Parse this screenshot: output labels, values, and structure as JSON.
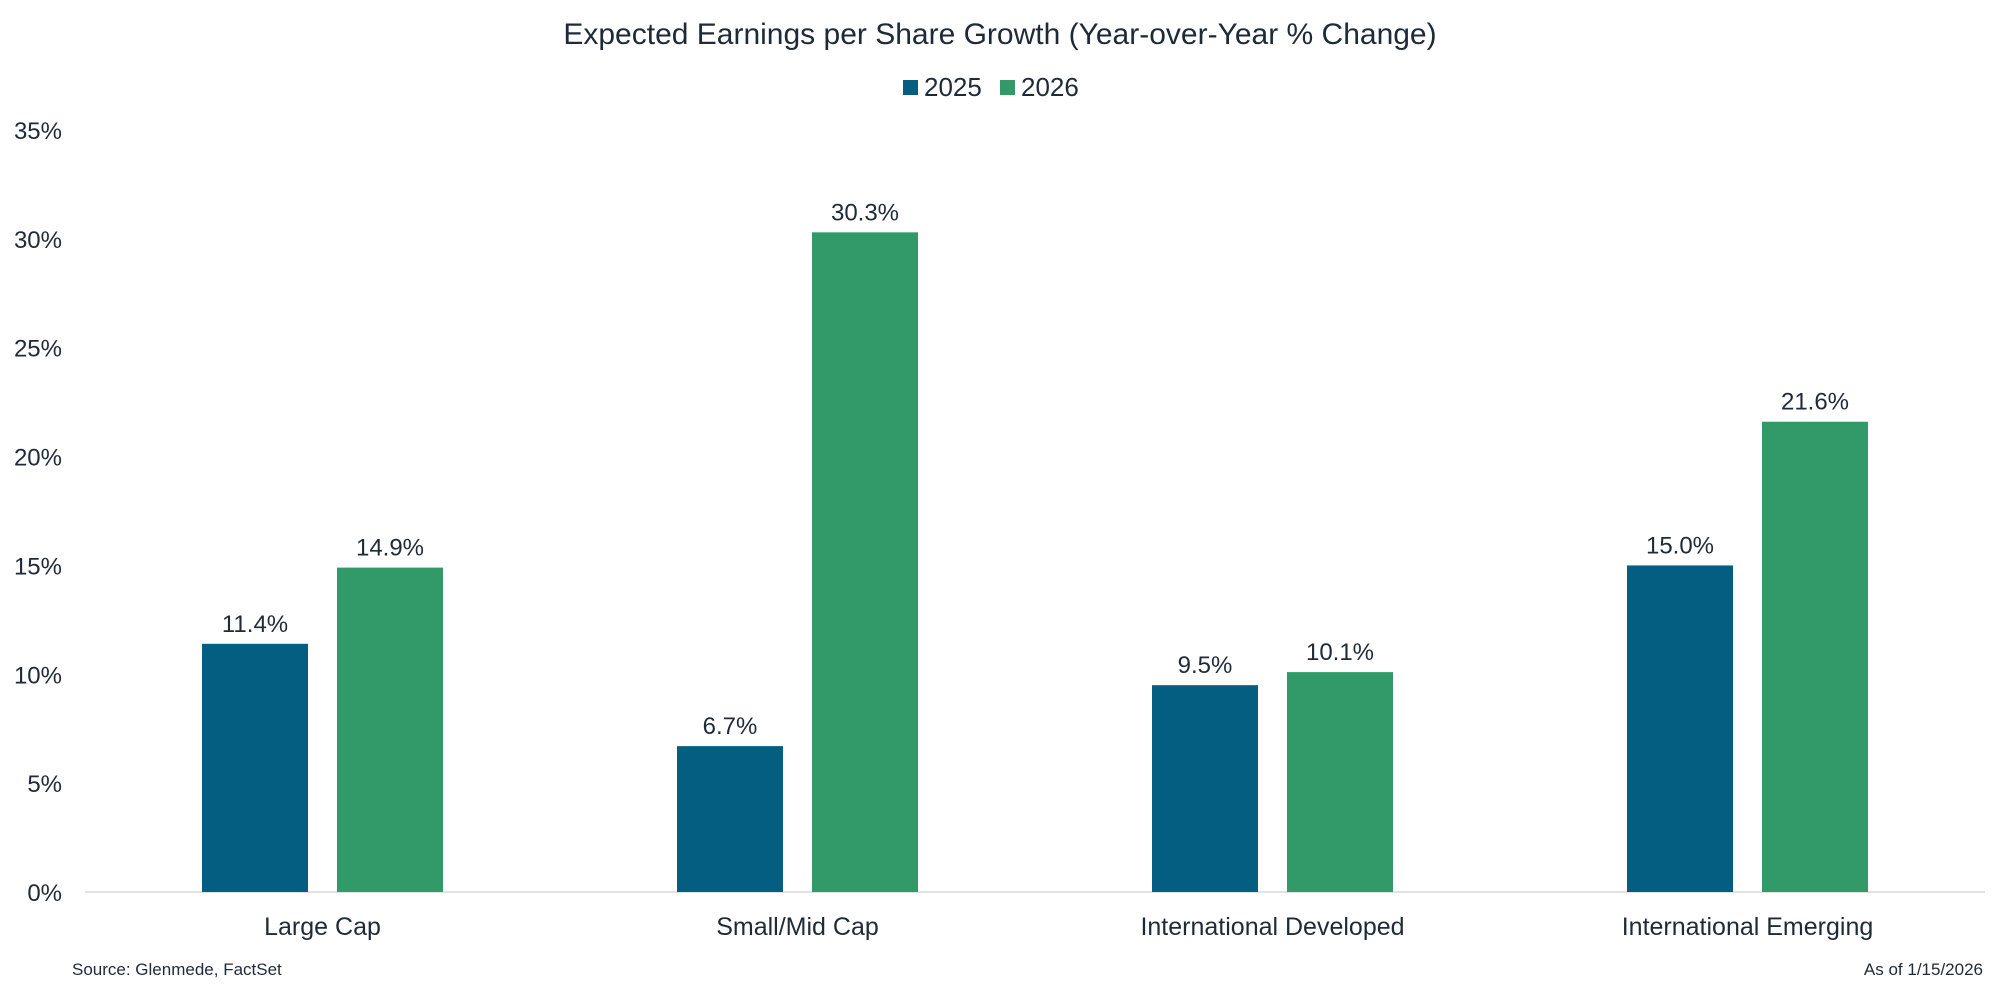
{
  "chart_data": {
    "type": "bar",
    "title": "Expected Earnings per Share Growth (Year-over-Year % Change)",
    "categories": [
      "Large Cap",
      "Small/Mid Cap",
      "International Developed",
      "International Emerging"
    ],
    "series": [
      {
        "name": "2025",
        "color": "#035E82",
        "values": [
          11.4,
          6.7,
          9.5,
          15.0
        ],
        "labels": [
          "11.4%",
          "6.7%",
          "9.5%",
          "15.0%"
        ]
      },
      {
        "name": "2026",
        "color": "#329A69",
        "values": [
          14.9,
          30.3,
          10.1,
          21.6
        ],
        "labels": [
          "14.9%",
          "30.3%",
          "10.1%",
          "21.6%"
        ]
      }
    ],
    "ylim": [
      0,
      35
    ],
    "yticks": [
      0,
      5,
      10,
      15,
      20,
      25,
      30,
      35
    ],
    "ytick_labels": [
      "0%",
      "5%",
      "10%",
      "15%",
      "20%",
      "25%",
      "30%",
      "35%"
    ],
    "xlabel": "",
    "ylabel": "",
    "grid": false,
    "legend_position": "top-center"
  },
  "footer": {
    "source": "Source: Glenmede, FactSet",
    "as_of": "As of 1/15/2026"
  }
}
